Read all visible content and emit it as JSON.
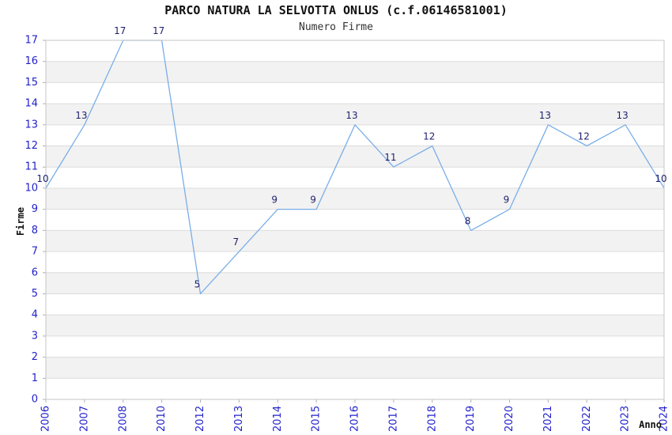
{
  "title": "PARCO NATURA LA SELVOTTA ONLUS (c.f.06146581001)",
  "subtitle": "Numero Firme",
  "chart_data": {
    "type": "line",
    "title": "PARCO NATURA LA SELVOTTA ONLUS (c.f.06146581001)",
    "subtitle": "Numero Firme",
    "xlabel": "Anno",
    "ylabel": "Firme",
    "categories": [
      "2006",
      "2007",
      "2008",
      "2010",
      "2012",
      "2013",
      "2014",
      "2015",
      "2016",
      "2017",
      "2018",
      "2019",
      "2020",
      "2021",
      "2022",
      "2023",
      "2024"
    ],
    "values": [
      10,
      13,
      17,
      17,
      5,
      7,
      9,
      9,
      13,
      11,
      12,
      8,
      9,
      13,
      12,
      13,
      10
    ],
    "ylim": [
      0,
      17
    ],
    "yticks": [
      0,
      1,
      2,
      3,
      4,
      5,
      6,
      7,
      8,
      9,
      10,
      11,
      12,
      13,
      14,
      15,
      16,
      17
    ],
    "grid": true,
    "alternating_bands": true,
    "legend_position": "none",
    "point_labels_visible": true,
    "colors": {
      "line": "#7aaee8",
      "tick_label": "#2222cc",
      "point_label": "#1f1f6e",
      "band": "#f2f2f2",
      "grid": "#dcdcdc",
      "frame": "#c6c6c6",
      "tick_mark": "#b0b0b0",
      "title": "#111111",
      "subtitle": "#333333",
      "axis_title": "#111111",
      "background": "#ffffff"
    }
  }
}
